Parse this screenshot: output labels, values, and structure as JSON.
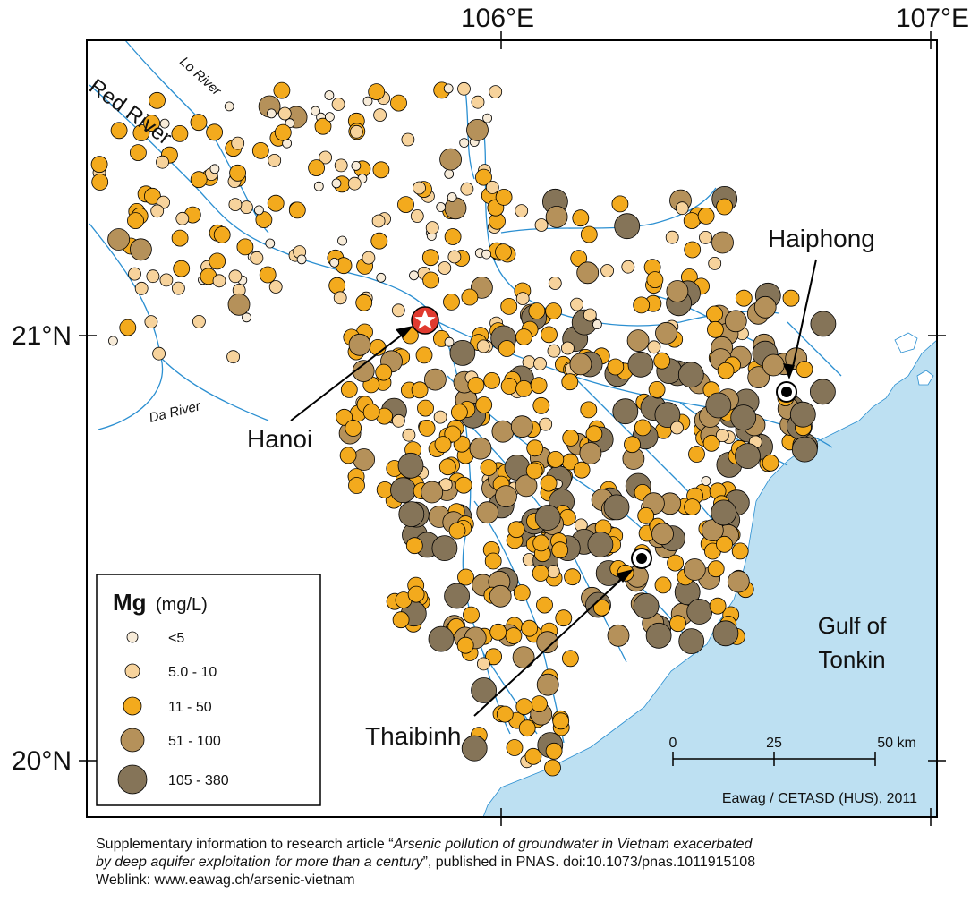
{
  "axes": {
    "lon_labels": [
      "106°E",
      "107°E"
    ],
    "lat_labels": [
      "21°N",
      "20°N"
    ]
  },
  "rivers": {
    "red": "Red River",
    "lo": "Lo River",
    "da": "Da River"
  },
  "cities": {
    "hanoi": "Hanoi",
    "haiphong": "Haiphong",
    "thaibinh": "Thaibinh"
  },
  "sea": {
    "line1": "Gulf of",
    "line2": "Tonkin"
  },
  "legend": {
    "symbol": "Mg",
    "unit": "(mg/L)",
    "classes": [
      {
        "label": "<5",
        "color": "#f7ebd8"
      },
      {
        "label": "5.0 - 10",
        "color": "#f7d39c"
      },
      {
        "label": "11 - 50",
        "color": "#f3aa1d"
      },
      {
        "label": "51 - 100",
        "color": "#b5915a"
      },
      {
        "label": "105 - 380",
        "color": "#857458"
      }
    ]
  },
  "scalebar": {
    "ticks": [
      "0",
      "25",
      "50 km"
    ]
  },
  "credit": "Eawag / CETASD (HUS), 2011",
  "caption": {
    "line1_plain": "Supplementary information to research article “",
    "title_part1": "Arsenic pollution of groundwater in Vietnam exacerbated",
    "title_part2": "by deep aquifer exploitation for more than a century",
    "line2_plain": "”, published in PNAS. doi:10.1073/pnas.1011915108",
    "line3": "Weblink: www.eawag.ch/arsenic-vietnam"
  },
  "colors": {
    "sea": "#bde0f2",
    "river": "#2b8fd1",
    "star_fill": "#e03a2f"
  }
}
